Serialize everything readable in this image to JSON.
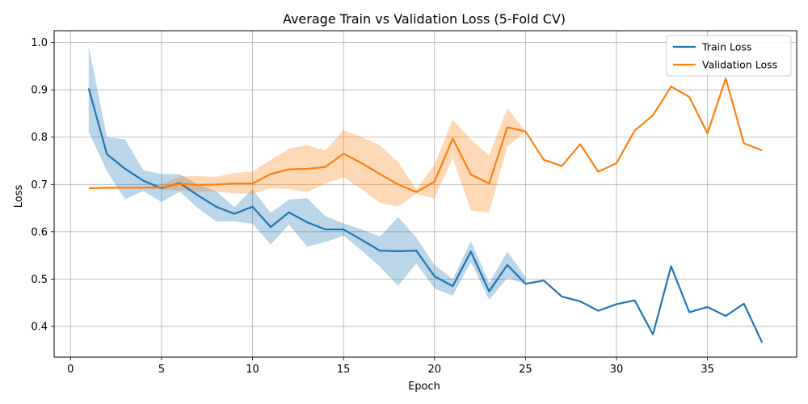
{
  "chart_data": {
    "type": "line",
    "title": "Average Train vs Validation Loss (5-Fold CV)",
    "xlabel": "Epoch",
    "ylabel": "Loss",
    "xlim": [
      -0.9,
      39.9
    ],
    "ylim": [
      0.335,
      1.025
    ],
    "xticks": [
      0,
      5,
      10,
      15,
      20,
      25,
      30,
      35
    ],
    "yticks": [
      0.4,
      0.5,
      0.6,
      0.7,
      0.8,
      0.9,
      1.0
    ],
    "xtick_labels": [
      "0",
      "5",
      "10",
      "15",
      "20",
      "25",
      "30",
      "35"
    ],
    "ytick_labels": [
      "0.4",
      "0.5",
      "0.6",
      "0.7",
      "0.8",
      "0.9",
      "1.0"
    ],
    "grid": true,
    "legend_position": "top-right",
    "x": [
      1,
      2,
      3,
      4,
      5,
      6,
      7,
      8,
      9,
      10,
      11,
      12,
      13,
      14,
      15,
      16,
      17,
      18,
      19,
      20,
      21,
      22,
      23,
      24,
      25,
      26,
      27,
      28,
      29,
      30,
      31,
      32,
      33,
      34,
      35,
      36,
      37,
      38
    ],
    "series": [
      {
        "name": "Train Loss",
        "color": "#1f77b4",
        "band_color": "#1f77b4",
        "values": [
          0.903,
          0.764,
          0.733,
          0.708,
          0.692,
          0.703,
          0.677,
          0.653,
          0.638,
          0.653,
          0.61,
          0.641,
          0.62,
          0.605,
          0.605,
          0.583,
          0.56,
          0.559,
          0.56,
          0.506,
          0.485,
          0.558,
          0.474,
          0.53,
          0.49,
          0.497,
          0.463,
          0.453,
          0.433,
          0.447,
          0.455,
          0.383,
          0.527,
          0.43,
          0.441,
          0.422,
          0.448,
          0.366
        ],
        "band_upper": [
          0.992,
          0.8,
          0.795,
          0.73,
          0.722,
          0.722,
          0.7,
          0.686,
          0.652,
          0.69,
          0.64,
          0.668,
          0.671,
          0.633,
          0.618,
          0.605,
          0.59,
          0.631,
          0.588,
          0.53,
          0.5,
          0.58,
          0.492,
          0.558,
          0.505
        ],
        "band_lower": [
          0.812,
          0.728,
          0.669,
          0.686,
          0.663,
          0.685,
          0.65,
          0.622,
          0.622,
          0.617,
          0.573,
          0.615,
          0.569,
          0.578,
          0.592,
          0.56,
          0.526,
          0.486,
          0.533,
          0.48,
          0.465,
          0.536,
          0.456,
          0.502,
          0.49
        ]
      },
      {
        "name": "Validation Loss",
        "color": "#ff7f0e",
        "band_color": "#ff7f0e",
        "values": [
          0.692,
          0.693,
          0.693,
          0.693,
          0.694,
          0.701,
          0.699,
          0.7,
          0.702,
          0.702,
          0.722,
          0.732,
          0.733,
          0.737,
          0.765,
          0.745,
          0.722,
          0.7,
          0.684,
          0.706,
          0.797,
          0.721,
          0.702,
          0.821,
          0.812,
          0.752,
          0.739,
          0.785,
          0.727,
          0.745,
          0.814,
          0.846,
          0.907,
          0.885,
          0.808,
          0.924,
          0.787,
          0.772
        ],
        "band_upper": [
          0.692,
          0.693,
          0.693,
          0.694,
          0.7,
          0.717,
          0.718,
          0.716,
          0.724,
          0.727,
          0.752,
          0.776,
          0.783,
          0.772,
          0.815,
          0.8,
          0.783,
          0.747,
          0.69,
          0.742,
          0.837,
          0.795,
          0.761,
          0.862,
          0.812
        ],
        "band_lower": [
          0.692,
          0.693,
          0.693,
          0.692,
          0.69,
          0.687,
          0.685,
          0.685,
          0.681,
          0.68,
          0.692,
          0.69,
          0.684,
          0.702,
          0.715,
          0.69,
          0.661,
          0.653,
          0.68,
          0.67,
          0.756,
          0.645,
          0.64,
          0.78,
          0.812
        ]
      }
    ]
  }
}
